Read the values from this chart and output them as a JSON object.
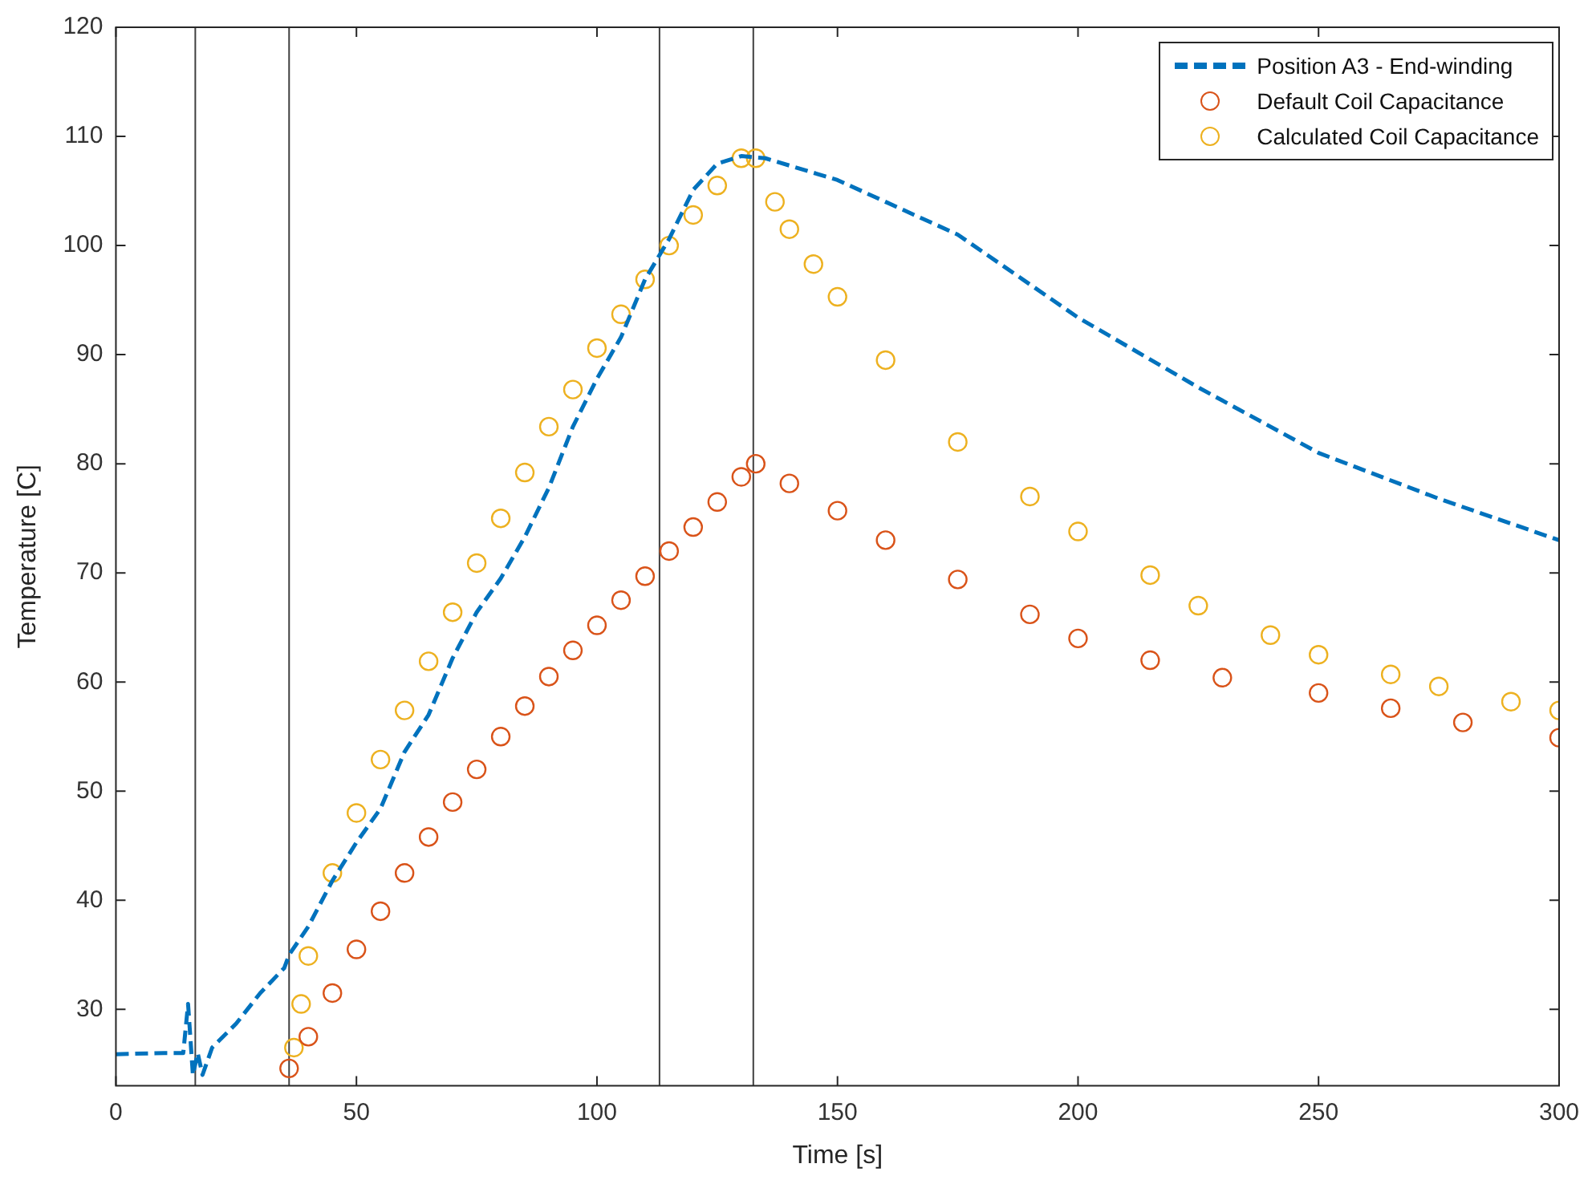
{
  "chart_data": {
    "type": "line",
    "xlabel": "Time [s]",
    "ylabel": "Temperature [C]",
    "xlim": [
      0,
      300
    ],
    "xticks": [
      0,
      50,
      100,
      150,
      200,
      250,
      300
    ],
    "ylim": [
      23,
      120
    ],
    "yticks": [
      30,
      40,
      50,
      60,
      70,
      80,
      90,
      100,
      110,
      120
    ],
    "grid": false,
    "legend": "top right",
    "ref_lines": [
      {
        "axis": "x",
        "value": 16.5,
        "color": "#404040"
      },
      {
        "axis": "x",
        "value": 36,
        "color": "#404040"
      },
      {
        "axis": "x",
        "value": 113,
        "color": "#404040"
      },
      {
        "axis": "x",
        "value": 132.5,
        "color": "#404040"
      }
    ],
    "series": [
      {
        "name": "Position A3 - End-winding",
        "type": "line",
        "line_style": "dashed",
        "color": "#0072bd",
        "x": [
          0,
          10,
          14,
          15,
          16,
          17,
          18,
          20,
          25,
          30,
          35,
          36,
          40,
          45,
          50,
          55,
          60,
          65,
          70,
          75,
          80,
          85,
          90,
          95,
          100,
          105,
          110,
          115,
          120,
          125,
          130,
          135,
          150,
          175,
          200,
          225,
          250,
          275,
          300
        ],
        "values": [
          25.9,
          26,
          26,
          30.5,
          24,
          26,
          24,
          26.5,
          28.7,
          31.5,
          33.8,
          35,
          37.6,
          41.8,
          45.3,
          48.4,
          53.6,
          57,
          62.2,
          66.4,
          69.5,
          73.3,
          77.8,
          83.4,
          87.8,
          91.6,
          96.9,
          100.6,
          105.1,
          107.5,
          108.2,
          108,
          106,
          101,
          93.4,
          87,
          81,
          76.8,
          73
        ]
      },
      {
        "name": "Default Coil Capacitance",
        "type": "scatter",
        "marker": "circle",
        "color": "#d95319",
        "x": [
          36,
          40,
          45,
          50,
          55,
          60,
          65,
          70,
          75,
          80,
          85,
          90,
          95,
          100,
          105,
          110,
          115,
          120,
          125,
          130,
          133,
          140,
          150,
          160,
          175,
          190,
          200,
          215,
          230,
          250,
          265,
          280,
          300
        ],
        "values": [
          24.6,
          27.5,
          31.5,
          35.5,
          39,
          42.5,
          45.8,
          49,
          52,
          55,
          57.8,
          60.5,
          62.9,
          65.2,
          67.5,
          69.7,
          72,
          74.2,
          76.5,
          78.8,
          80,
          78.2,
          75.7,
          73,
          69.4,
          66.2,
          64,
          62,
          60.4,
          59,
          57.6,
          56.3,
          54.9
        ]
      },
      {
        "name": "Calculated Coil Capacitance",
        "type": "scatter",
        "marker": "circle",
        "color": "#edb120",
        "x": [
          37,
          38.5,
          40,
          45,
          50,
          55,
          60,
          65,
          70,
          75,
          80,
          85,
          90,
          95,
          100,
          105,
          110,
          115,
          120,
          125,
          130,
          133,
          137,
          140,
          145,
          150,
          160,
          175,
          190,
          200,
          215,
          225,
          240,
          250,
          265,
          275,
          290,
          300
        ],
        "values": [
          26.5,
          30.5,
          34.9,
          42.5,
          48,
          52.9,
          57.4,
          61.9,
          66.4,
          70.9,
          75,
          79.2,
          83.4,
          86.8,
          90.6,
          93.7,
          96.9,
          100,
          102.8,
          105.5,
          108,
          108,
          104,
          101.5,
          98.3,
          95.3,
          89.5,
          82,
          77,
          73.8,
          69.8,
          67,
          64.3,
          62.5,
          60.7,
          59.6,
          58.2,
          57.4
        ]
      }
    ]
  }
}
